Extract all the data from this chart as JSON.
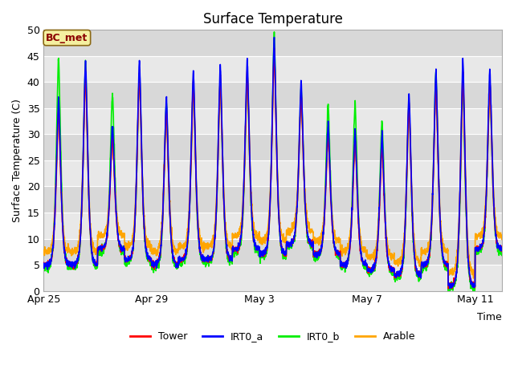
{
  "title": "Surface Temperature",
  "ylabel": "Surface Temperature (C)",
  "xlabel": "Time",
  "ylim": [
    0,
    50
  ],
  "bc_met_label": "BC_met",
  "legend_labels": [
    "Tower",
    "IRT0_a",
    "IRT0_b",
    "Arable"
  ],
  "line_colors": {
    "Tower": "#ff0000",
    "IRT0_a": "#0000ff",
    "IRT0_b": "#00ee00",
    "Arable": "#ffa500"
  },
  "xtick_labels": [
    "Apr 25",
    "Apr 29",
    "May 3",
    "May 7",
    "May 11"
  ],
  "xtick_positions": [
    0,
    4,
    8,
    12,
    16
  ],
  "plot_bg_color": "#e8e8e8",
  "band_colors": [
    "#e8e8e8",
    "#d8d8d8"
  ],
  "n_days": 17,
  "pts_per_day": 144,
  "day_peaks_tower": [
    35,
    42,
    30,
    42,
    35,
    40,
    41,
    42,
    46,
    38,
    30,
    29,
    28,
    36,
    40,
    42,
    40
  ],
  "day_peaks_irt0b": [
    45,
    44,
    38,
    42,
    36,
    40,
    41,
    41,
    49,
    39,
    36,
    36,
    33,
    36,
    42,
    40,
    40
  ],
  "day_mins": [
    5,
    5,
    8,
    6,
    5,
    6,
    6,
    8,
    7,
    9,
    7,
    5,
    4,
    3,
    5,
    1,
    8
  ]
}
